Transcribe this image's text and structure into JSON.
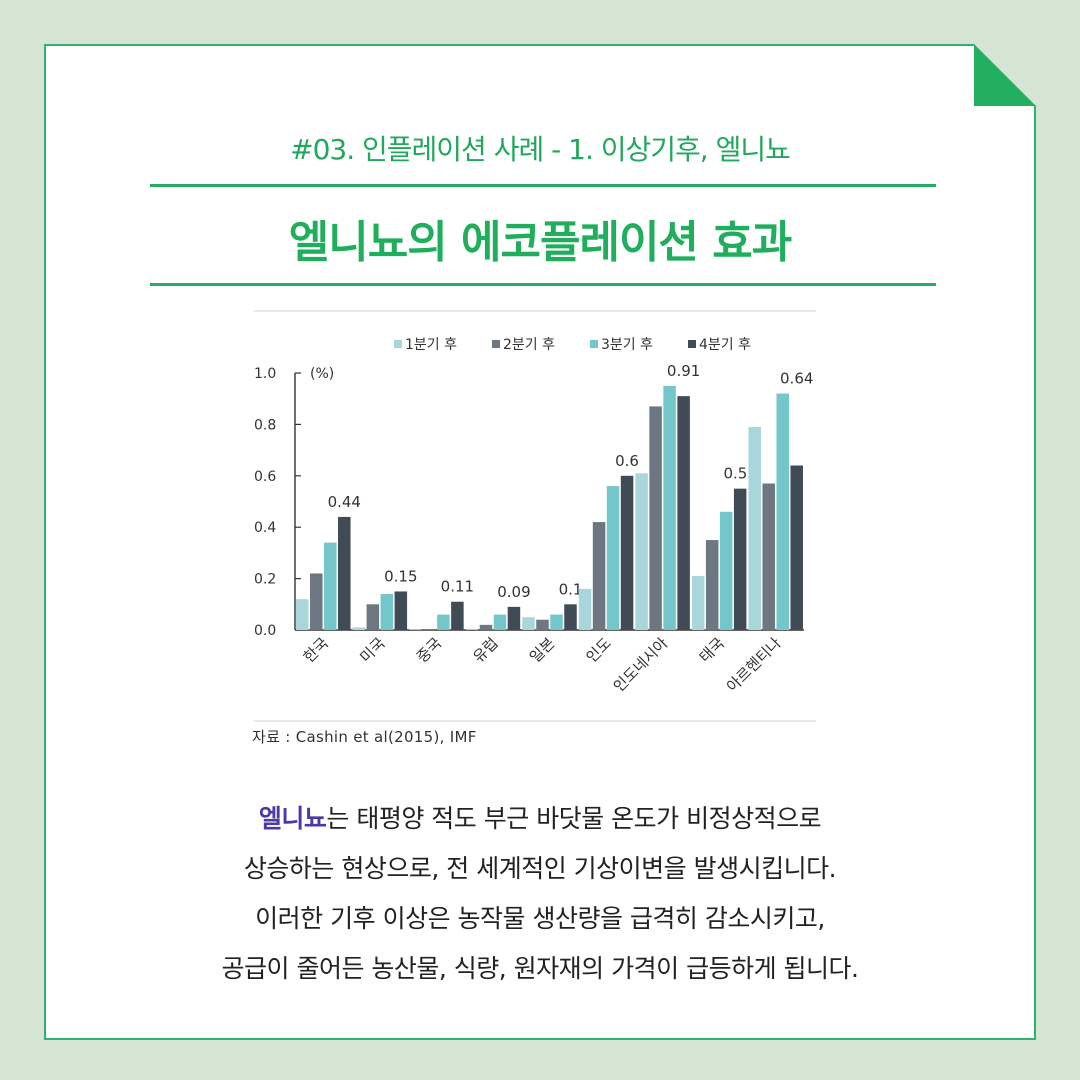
{
  "header": {
    "subtitle": "#03. 인플레이션 사례  - 1. 이상기후, 엘니뇨",
    "title": "엘니뇨의 에코플레이션 효과"
  },
  "chart_data": {
    "type": "bar",
    "unit_label": "(%)",
    "categories": [
      "한국",
      "미국",
      "중국",
      "유럽",
      "일본",
      "인도",
      "인도네시아",
      "태국",
      "아르헨티나"
    ],
    "series": [
      {
        "name": "1분기 후",
        "color": "#a9d6da",
        "values": [
          0.12,
          0.01,
          0.0,
          0.0,
          0.05,
          0.16,
          0.61,
          0.21,
          0.79
        ]
      },
      {
        "name": "2분기 후",
        "color": "#6d7781",
        "values": [
          0.22,
          0.1,
          0.0,
          0.02,
          0.04,
          0.42,
          0.87,
          0.35,
          0.57
        ]
      },
      {
        "name": "3분기 후",
        "color": "#73c6c9",
        "values": [
          0.34,
          0.14,
          0.06,
          0.06,
          0.06,
          0.56,
          0.95,
          0.46,
          0.92
        ]
      },
      {
        "name": "4분기 후",
        "color": "#414b55",
        "values": [
          0.44,
          0.15,
          0.11,
          0.09,
          0.1,
          0.6,
          0.91,
          0.55,
          0.64
        ]
      }
    ],
    "data_labels": [
      "0.44",
      "0.15",
      "0.11",
      "0.09",
      "0.1",
      "0.6",
      "0.91",
      "0.55",
      "0.64"
    ],
    "ylim": [
      0,
      1.0
    ],
    "yticks": [
      "0.0",
      "0.2",
      "0.4",
      "0.6",
      "0.8",
      "1.0"
    ],
    "legend_position": "top-right",
    "source": "자료 : Cashin et al(2015), IMF"
  },
  "body": {
    "highlight": "엘니뇨",
    "line1": "는 태평양 적도 부근 바닷물 온도가 비정상적으로",
    "line2": "상승하는 현상으로, 전 세계적인 기상이변을 발생시킵니다.",
    "line3": "이러한 기후 이상은 농작물 생산량을 급격히 감소시키고,",
    "line4": "공급이 줄어든 농산물, 식량, 원자재의 가격이 급등하게 됩니다."
  },
  "colors": {
    "background": "#d6e5d3",
    "accent": "#22b060",
    "highlight": "#4a3aa8"
  }
}
